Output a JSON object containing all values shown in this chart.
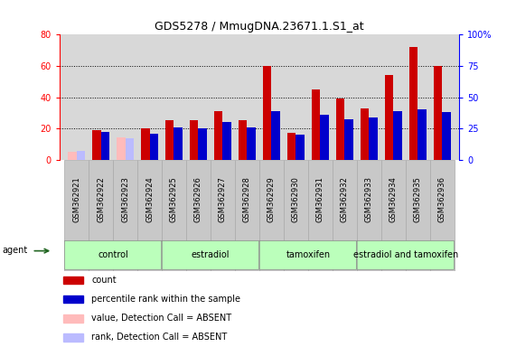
{
  "title": "GDS5278 / MmugDNA.23671.1.S1_at",
  "samples": [
    "GSM362921",
    "GSM362922",
    "GSM362923",
    "GSM362924",
    "GSM362925",
    "GSM362926",
    "GSM362927",
    "GSM362928",
    "GSM362929",
    "GSM362930",
    "GSM362931",
    "GSM362932",
    "GSM362933",
    "GSM362934",
    "GSM362935",
    "GSM362936"
  ],
  "count_values": [
    5,
    19,
    14,
    20,
    25,
    25,
    31,
    25,
    60,
    17,
    45,
    39,
    33,
    54,
    72,
    60
  ],
  "rank_values": [
    7,
    22,
    17,
    21,
    26,
    25,
    30,
    26,
    39,
    20,
    36,
    32,
    34,
    39,
    40,
    38
  ],
  "absent_mask": [
    true,
    false,
    true,
    false,
    false,
    false,
    false,
    false,
    false,
    false,
    false,
    false,
    false,
    false,
    false,
    false
  ],
  "groups": [
    {
      "label": "control",
      "start": 0,
      "end": 4
    },
    {
      "label": "estradiol",
      "start": 4,
      "end": 8
    },
    {
      "label": "tamoxifen",
      "start": 8,
      "end": 12
    },
    {
      "label": "estradiol and tamoxifen",
      "start": 12,
      "end": 16
    }
  ],
  "ylim_left": [
    0,
    80
  ],
  "bar_width": 0.35,
  "count_color": "#cc0000",
  "rank_color": "#0000cc",
  "absent_count_color": "#ffbbbb",
  "absent_rank_color": "#bbbbff",
  "plot_bg_color": "#d8d8d8",
  "group_bg_color": "#c8c8c8",
  "group_fill_color": "#bbffbb",
  "legend_items": [
    {
      "color": "#cc0000",
      "label": "count"
    },
    {
      "color": "#0000cc",
      "label": "percentile rank within the sample"
    },
    {
      "color": "#ffbbbb",
      "label": "value, Detection Call = ABSENT"
    },
    {
      "color": "#bbbbff",
      "label": "rank, Detection Call = ABSENT"
    }
  ]
}
